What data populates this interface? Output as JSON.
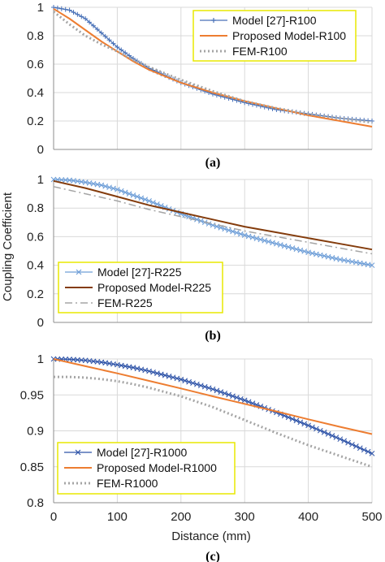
{
  "figure": {
    "ylabel": "Coupling Coefficient",
    "xlabel": "Distance (mm)"
  },
  "chart_data": [
    {
      "type": "line",
      "panel_label": "(a)",
      "xlim": [
        0,
        500
      ],
      "ylim": [
        0,
        1
      ],
      "x_ticks": [
        "0",
        "100",
        "200",
        "300",
        "400",
        "500"
      ],
      "y_ticks": [
        "0",
        "0.2",
        "0.4",
        "0.6",
        "0.8",
        "1"
      ],
      "y_tick_values": [
        0,
        0.2,
        0.4,
        0.6,
        0.8,
        1
      ],
      "grid": true,
      "show_x_tick_labels": false,
      "legend_position": "top-right",
      "series": [
        {
          "name": "Model [27]-R100",
          "style": "marker-plus",
          "color": "#4a72b8",
          "x": [
            0,
            25,
            50,
            75,
            100,
            125,
            150,
            200,
            250,
            300,
            350,
            400,
            450,
            500
          ],
          "y": [
            1.0,
            0.98,
            0.92,
            0.82,
            0.72,
            0.64,
            0.57,
            0.47,
            0.39,
            0.33,
            0.28,
            0.25,
            0.22,
            0.2
          ]
        },
        {
          "name": "Proposed Model-R100",
          "style": "solid",
          "color": "#ed7d31",
          "x": [
            0,
            25,
            50,
            75,
            100,
            125,
            150,
            200,
            250,
            300,
            350,
            400,
            450,
            500
          ],
          "y": [
            0.99,
            0.92,
            0.84,
            0.76,
            0.69,
            0.62,
            0.56,
            0.47,
            0.4,
            0.34,
            0.29,
            0.24,
            0.2,
            0.16
          ]
        },
        {
          "name": "FEM-R100",
          "style": "dotted",
          "color": "#a5a5a5",
          "x": [
            0,
            25,
            50,
            75,
            100,
            125,
            150,
            200,
            250,
            300,
            350,
            400,
            450,
            500
          ],
          "y": [
            0.97,
            0.88,
            0.8,
            0.74,
            0.69,
            0.63,
            0.58,
            0.49,
            0.41,
            0.34,
            0.29,
            0.25,
            0.22,
            0.19
          ]
        }
      ]
    },
    {
      "type": "line",
      "panel_label": "(b)",
      "xlim": [
        0,
        500
      ],
      "ylim": [
        0,
        1
      ],
      "x_ticks": [
        "0",
        "100",
        "200",
        "300",
        "400",
        "500"
      ],
      "y_ticks": [
        "0",
        "0.2",
        "0.4",
        "0.6",
        "0.8",
        "1"
      ],
      "y_tick_values": [
        0,
        0.2,
        0.4,
        0.6,
        0.8,
        1
      ],
      "grid": true,
      "show_x_tick_labels": false,
      "legend_position": "bottom-left",
      "series": [
        {
          "name": "Model [27]-R225",
          "style": "marker-x",
          "color": "#6f9fd8",
          "x": [
            0,
            25,
            50,
            75,
            100,
            125,
            150,
            200,
            250,
            300,
            350,
            400,
            450,
            500
          ],
          "y": [
            1.0,
            0.995,
            0.98,
            0.96,
            0.93,
            0.89,
            0.85,
            0.76,
            0.68,
            0.61,
            0.55,
            0.49,
            0.44,
            0.4
          ]
        },
        {
          "name": "Proposed Model-R225",
          "style": "solid",
          "color": "#843c0c",
          "x": [
            0,
            50,
            100,
            150,
            200,
            250,
            300,
            350,
            400,
            450,
            500
          ],
          "y": [
            0.99,
            0.94,
            0.88,
            0.82,
            0.77,
            0.72,
            0.67,
            0.63,
            0.59,
            0.55,
            0.51
          ]
        },
        {
          "name": "FEM-R225",
          "style": "dashdot",
          "color": "#a5a5a5",
          "x": [
            0,
            50,
            100,
            150,
            200,
            250,
            300,
            350,
            400,
            450,
            500
          ],
          "y": [
            0.95,
            0.9,
            0.85,
            0.79,
            0.74,
            0.69,
            0.64,
            0.6,
            0.56,
            0.52,
            0.48
          ]
        }
      ]
    },
    {
      "type": "line",
      "panel_label": "(c)",
      "xlim": [
        0,
        500
      ],
      "ylim": [
        0.8,
        1
      ],
      "x_ticks": [
        "0",
        "100",
        "200",
        "300",
        "400",
        "500"
      ],
      "y_ticks": [
        "0.8",
        "0.85",
        "0.9",
        "0.95",
        "1"
      ],
      "y_tick_values": [
        0.8,
        0.85,
        0.9,
        0.95,
        1
      ],
      "grid": true,
      "show_x_tick_labels": true,
      "legend_position": "bottom-left",
      "series": [
        {
          "name": "Model [27]-R1000",
          "style": "marker-x",
          "color": "#2f54a8",
          "x": [
            0,
            25,
            50,
            75,
            100,
            125,
            150,
            200,
            250,
            300,
            350,
            400,
            450,
            500
          ],
          "y": [
            1.0,
            0.9995,
            0.998,
            0.9955,
            0.992,
            0.988,
            0.983,
            0.9715,
            0.958,
            0.9425,
            0.9255,
            0.9075,
            0.8885,
            0.8685
          ]
        },
        {
          "name": "Proposed Model-R1000",
          "style": "solid",
          "color": "#ed7d31",
          "x": [
            0,
            50,
            100,
            150,
            200,
            250,
            300,
            350,
            400,
            450,
            500
          ],
          "y": [
            1.0,
            0.99,
            0.98,
            0.9695,
            0.959,
            0.948,
            0.9375,
            0.927,
            0.916,
            0.9055,
            0.8955
          ]
        },
        {
          "name": "FEM-R1000",
          "style": "dotted",
          "color": "#a5a5a5",
          "x": [
            0,
            25,
            50,
            75,
            100,
            125,
            150,
            200,
            250,
            300,
            350,
            400,
            450,
            500
          ],
          "y": [
            0.975,
            0.975,
            0.974,
            0.972,
            0.969,
            0.965,
            0.96,
            0.948,
            0.933,
            0.915,
            0.897,
            0.88,
            0.865,
            0.85
          ]
        }
      ]
    }
  ]
}
